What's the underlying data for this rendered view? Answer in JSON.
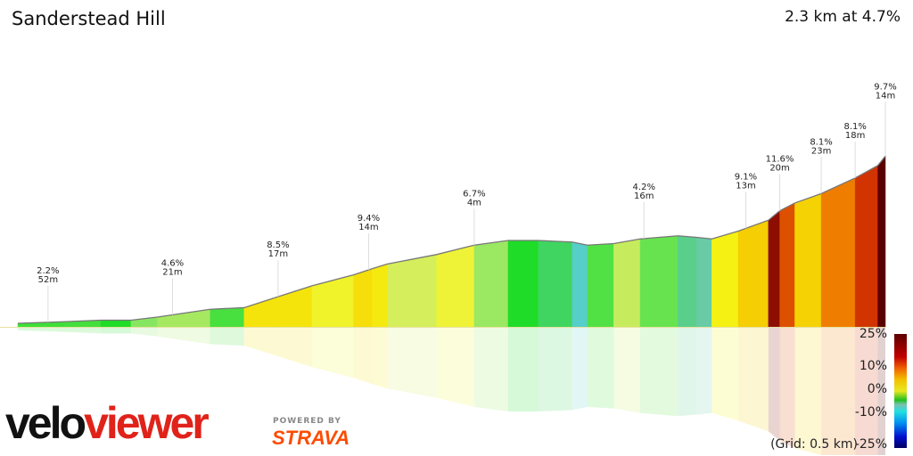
{
  "header": {
    "title": "Sanderstead Hill",
    "summary": "2.3 km at 4.7%"
  },
  "chart_data": {
    "type": "area",
    "title": "Sanderstead Hill",
    "distance_km": [
      0,
      0.12,
      0.22,
      0.3,
      0.37,
      0.51,
      0.6,
      0.69,
      0.78,
      0.89,
      0.94,
      0.98,
      1.11,
      1.21,
      1.3,
      1.38,
      1.47,
      1.51,
      1.58,
      1.65,
      1.75,
      1.8,
      1.84,
      1.91,
      1.99,
      2.02,
      2.06,
      2.13,
      2.22,
      2.28,
      2.3
    ],
    "elevation_m": [
      0,
      1,
      2,
      2,
      4,
      9,
      10,
      17,
      24,
      31,
      35,
      38,
      44,
      50,
      53,
      53,
      52,
      50,
      51,
      54,
      56,
      55,
      54,
      59,
      66,
      72,
      77,
      83,
      93,
      101,
      107
    ],
    "annotations": [
      {
        "km": 0.08,
        "grade": "2.2%",
        "length": "52m"
      },
      {
        "km": 0.41,
        "grade": "4.6%",
        "length": "21m"
      },
      {
        "km": 0.69,
        "grade": "8.5%",
        "length": "17m"
      },
      {
        "km": 0.93,
        "grade": "9.4%",
        "length": "14m"
      },
      {
        "km": 1.21,
        "grade": "6.7%",
        "length": "4m"
      },
      {
        "km": 1.66,
        "grade": "4.2%",
        "length": "16m"
      },
      {
        "km": 1.93,
        "grade": "9.1%",
        "length": "13m"
      },
      {
        "km": 2.02,
        "grade": "11.6%",
        "length": "20m"
      },
      {
        "km": 2.13,
        "grade": "8.1%",
        "length": "23m"
      },
      {
        "km": 2.22,
        "grade": "8.1%",
        "length": "18m"
      },
      {
        "km": 2.3,
        "grade": "9.7%",
        "length": "14m"
      }
    ],
    "grid_note": "(Grid: 0.5 km)",
    "legend": {
      "labels": [
        "25%",
        "10%",
        "0%",
        "-10%",
        "-25%"
      ],
      "range": [
        -25,
        25
      ]
    },
    "reflection": true
  },
  "branding": {
    "logo_velo": "velo",
    "logo_viewer": "viewer",
    "powered_by": "POWERED BY",
    "strava": "STRAVA"
  },
  "colors": {
    "brand_red": "#e0231a",
    "strava_orange": "#fc4c02",
    "outline": "#777777"
  }
}
